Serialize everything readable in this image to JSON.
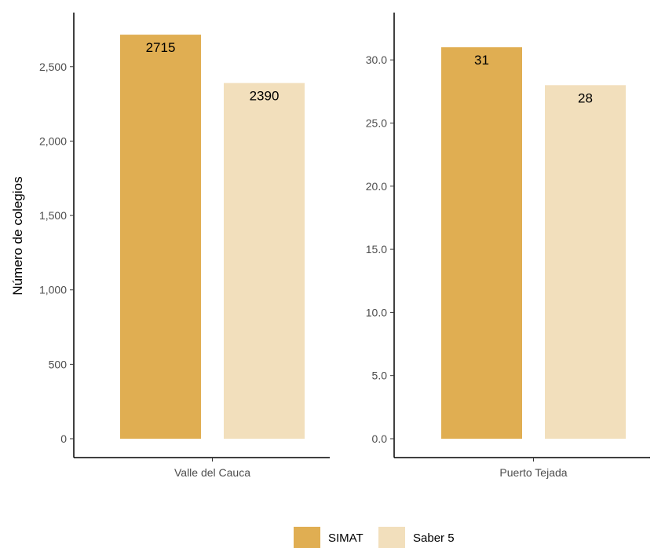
{
  "chart_data": [
    {
      "type": "bar",
      "categories": [
        "Valle del Cauca"
      ],
      "series": [
        {
          "name": "SIMAT",
          "values": [
            2715
          ]
        },
        {
          "name": "Saber 5",
          "values": [
            2390
          ]
        }
      ],
      "ylabel": "Número de colegios",
      "ylim": [
        0,
        2800
      ],
      "yticks": [
        0,
        500,
        1000,
        1500,
        2000,
        2500
      ],
      "ytick_labels": [
        "0",
        "500",
        "1,000",
        "1,500",
        "2,000",
        "2,500"
      ],
      "data_labels": [
        "2715",
        "2390"
      ]
    },
    {
      "type": "bar",
      "categories": [
        "Puerto Tejada"
      ],
      "series": [
        {
          "name": "SIMAT",
          "values": [
            31
          ]
        },
        {
          "name": "Saber 5",
          "values": [
            28
          ]
        }
      ],
      "ylim": [
        0,
        32
      ],
      "yticks": [
        0,
        5,
        10,
        15,
        20,
        25,
        30
      ],
      "ytick_labels": [
        "0.0",
        "5.0",
        "10.0",
        "15.0",
        "20.0",
        "25.0",
        "30.0"
      ],
      "data_labels": [
        "31",
        "28"
      ]
    }
  ],
  "legend": {
    "position": "bottom",
    "items": [
      {
        "label": "SIMAT",
        "color": "#E0AE52"
      },
      {
        "label": "Saber 5",
        "color": "#F2DFBC"
      }
    ]
  },
  "colors": {
    "simat": "#E0AE52",
    "saber5": "#F2DFBC"
  },
  "grid": false
}
